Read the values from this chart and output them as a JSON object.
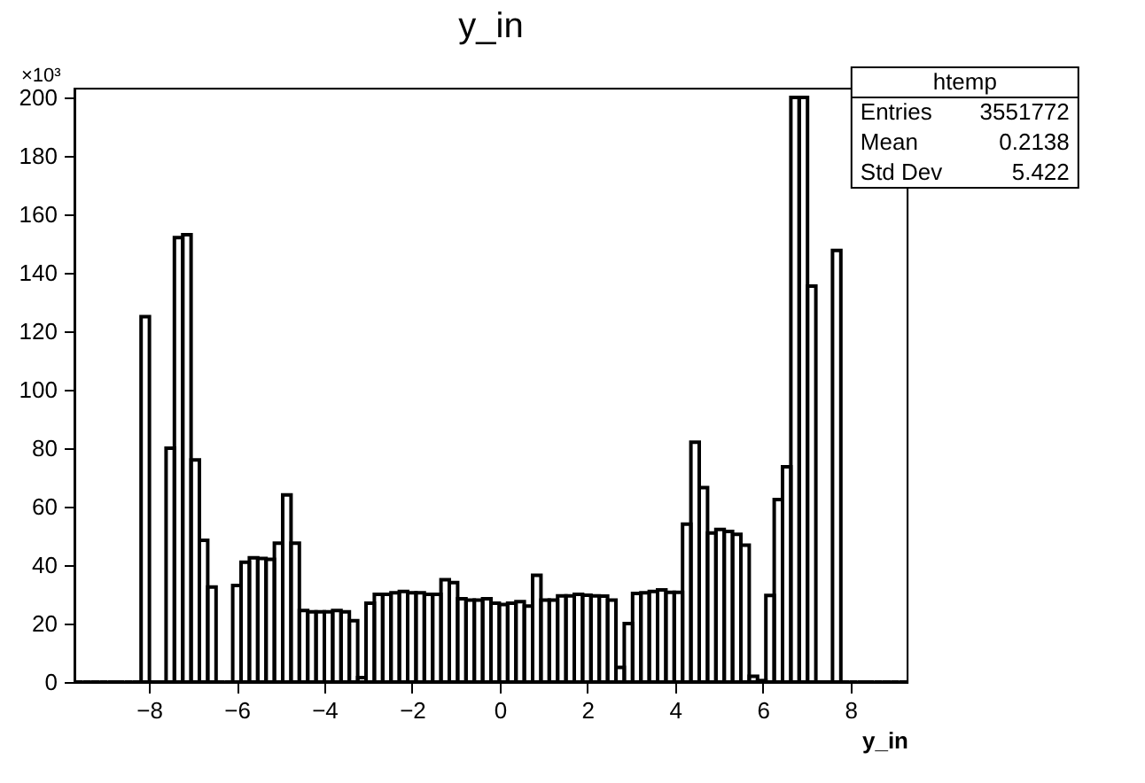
{
  "chart_data": {
    "type": "histogram",
    "title": "y_in",
    "xlabel": "y_in",
    "color": "#000000",
    "bins": [
      -9.7,
      -9.51,
      -9.32,
      -9.13,
      -8.94,
      -8.75,
      -8.56,
      -8.37,
      -8.18,
      -7.99,
      -7.8,
      -7.61,
      -7.42,
      -7.23,
      -7.04,
      -6.85,
      -6.66,
      -6.47,
      -6.28,
      -6.09,
      -5.9,
      -5.71,
      -5.52,
      -5.33,
      -5.14,
      -4.95,
      -4.76,
      -4.57,
      -4.38,
      -4.19,
      -4.0,
      -3.81,
      -3.62,
      -3.43,
      -3.24,
      -3.05,
      -2.86,
      -2.67,
      -2.48,
      -2.29,
      -2.1,
      -1.91,
      -1.72,
      -1.53,
      -1.34,
      -1.15,
      -0.96,
      -0.77,
      -0.58,
      -0.39,
      -0.2,
      -0.01,
      0.18,
      0.37,
      0.56,
      0.75,
      0.94,
      1.13,
      1.32,
      1.51,
      1.7,
      1.89,
      2.08,
      2.27,
      2.46,
      2.65,
      2.84,
      3.03,
      3.22,
      3.41,
      3.6,
      3.79,
      3.98,
      4.17,
      4.36,
      4.55,
      4.74,
      4.93,
      5.12,
      5.31,
      5.5,
      5.69,
      5.88,
      6.07,
      6.26,
      6.45,
      6.64,
      6.83,
      7.02,
      7.21,
      7.4,
      7.59,
      7.78,
      7.97,
      8.16,
      8.35,
      8.54,
      8.73,
      8.92,
      9.11,
      9.3
    ],
    "values": [
      0,
      0,
      0,
      0,
      0,
      0,
      0,
      0,
      125,
      0,
      0,
      80,
      152,
      153,
      76,
      48.5,
      32.5,
      0,
      0,
      33,
      41,
      42.5,
      42.3,
      42,
      47.5,
      64,
      47.5,
      24.5,
      24,
      24,
      24,
      24.5,
      24,
      21,
      1.5,
      27,
      30,
      30,
      30.5,
      31,
      30.5,
      30.5,
      30,
      30,
      35,
      34,
      28.5,
      28,
      28,
      28.5,
      27,
      26.5,
      27,
      27.5,
      26,
      36.5,
      28,
      28,
      29.5,
      29.5,
      30,
      29.7,
      29.5,
      29.4,
      28,
      5,
      20,
      30.3,
      30.5,
      31,
      31.5,
      30.7,
      30.7,
      54,
      82,
      66.5,
      51,
      52.2,
      51.5,
      50.5,
      46.8,
      2,
      0.5,
      29.6,
      62.4,
      73.6,
      200,
      200,
      135.4,
      0,
      0,
      147.6,
      0,
      0,
      0,
      0,
      0,
      0,
      0,
      0
    ],
    "xlim": [
      -9.7,
      9.3
    ],
    "xticks": [
      -8,
      -6,
      -4,
      -2,
      0,
      2,
      4,
      6,
      8
    ],
    "ylim": [
      0,
      203
    ],
    "yticks": [
      0,
      20,
      40,
      60,
      80,
      100,
      120,
      140,
      160,
      180,
      200
    ],
    "grid": false,
    "annotations": [
      "×10³",
      "htemp",
      "Entries",
      "3551772",
      "Mean",
      "0.2138",
      "Std Dev",
      "5.422"
    ]
  }
}
